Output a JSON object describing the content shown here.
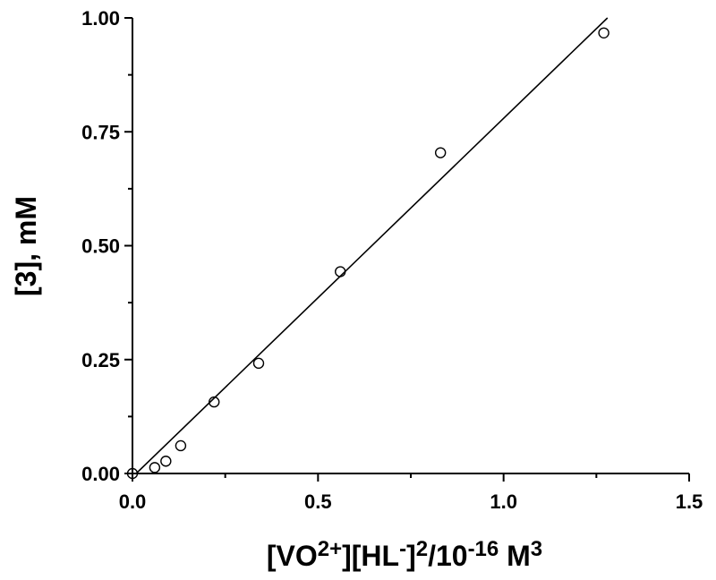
{
  "chart_data": {
    "type": "scatter",
    "title": "",
    "xlabel": {
      "parts": [
        {
          "text": "[VO",
          "sup": false
        },
        {
          "text": "2+",
          "sup": true
        },
        {
          "text": "][HL",
          "sup": false
        },
        {
          "text": "-",
          "sup": true
        },
        {
          "text": "]",
          "sup": false
        },
        {
          "text": "2",
          "sup": true
        },
        {
          "text": "/10",
          "sup": false
        },
        {
          "text": "-16",
          "sup": true
        },
        {
          "text": " M",
          "sup": false
        },
        {
          "text": "3",
          "sup": true
        }
      ]
    },
    "ylabel": "[3], mM",
    "xlim": [
      0.0,
      1.5
    ],
    "ylim": [
      0.0,
      1.0
    ],
    "xticks": [
      0.0,
      0.5,
      1.0,
      1.5
    ],
    "xtick_labels": [
      "0.0",
      "0.5",
      "1.0",
      "1.5"
    ],
    "yticks": [
      0.0,
      0.25,
      0.5,
      0.75,
      1.0
    ],
    "ytick_labels": [
      "0.00",
      "0.25",
      "0.50",
      "0.75",
      "1.00"
    ],
    "grid": false,
    "series": [
      {
        "kind": "points",
        "marker": "open-circle",
        "x": [
          0.0,
          0.06,
          0.09,
          0.13,
          0.22,
          0.34,
          0.56,
          0.83,
          1.27
        ],
        "y": [
          0.0,
          0.013,
          0.027,
          0.061,
          0.157,
          0.242,
          0.443,
          0.704,
          0.967
        ]
      },
      {
        "kind": "fit-line",
        "x": [
          0.01,
          1.28
        ],
        "y": [
          0.0,
          1.0
        ]
      }
    ]
  }
}
